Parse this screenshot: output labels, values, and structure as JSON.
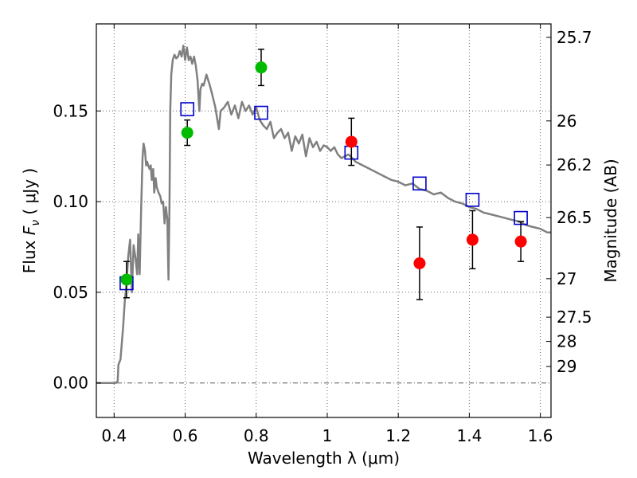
{
  "chart_data": {
    "type": "scatter",
    "xlabel": "Wavelength  λ (μm)",
    "ylabel": {
      "prefix": "Flux  ",
      "symbol": "F",
      "subscript": "ν",
      "suffix": "  ( μJy )"
    },
    "ylabel_right": "Magnitude (AB)",
    "xlim": [
      0.35,
      1.63
    ],
    "ylim": [
      -0.019,
      0.198
    ],
    "grid": true,
    "x_ticks": [
      {
        "value": 0.4,
        "label": "0.4"
      },
      {
        "value": 0.6,
        "label": "0.6"
      },
      {
        "value": 0.8,
        "label": "0.8"
      },
      {
        "value": 1.0,
        "label": "1"
      },
      {
        "value": 1.2,
        "label": "1.2"
      },
      {
        "value": 1.4,
        "label": "1.4"
      },
      {
        "value": 1.6,
        "label": "1.6"
      }
    ],
    "y_ticks": [
      {
        "value": 0.0,
        "label": "0.00"
      },
      {
        "value": 0.05,
        "label": "0.05"
      },
      {
        "value": 0.1,
        "label": "0.10"
      },
      {
        "value": 0.15,
        "label": "0.15"
      }
    ],
    "mag_ticks": [
      {
        "label": "25.7",
        "flux": 0.1906
      },
      {
        "label": "26",
        "flux": 0.1445
      },
      {
        "label": "26.2",
        "flux": 0.1202
      },
      {
        "label": "26.5",
        "flux": 0.0912
      },
      {
        "label": "27",
        "flux": 0.0575
      },
      {
        "label": "27.5",
        "flux": 0.0363
      },
      {
        "label": "28",
        "flux": 0.0229
      },
      {
        "label": "29",
        "flux": 0.0091
      }
    ],
    "colors": {
      "model": "#808080",
      "green": "#00bb00",
      "red": "#ff0000",
      "square": "#0000cc",
      "zero_line": "#555555",
      "grid": "#666666"
    },
    "series": [
      {
        "kind": "model_line",
        "points": [
          [
            0.35,
            0.0
          ],
          [
            0.405,
            0.0
          ],
          [
            0.41,
            0.001
          ],
          [
            0.412,
            0.01
          ],
          [
            0.418,
            0.013
          ],
          [
            0.425,
            0.03
          ],
          [
            0.43,
            0.045
          ],
          [
            0.435,
            0.055
          ],
          [
            0.44,
            0.07
          ],
          [
            0.445,
            0.079
          ],
          [
            0.45,
            0.05
          ],
          [
            0.455,
            0.076
          ],
          [
            0.46,
            0.069
          ],
          [
            0.465,
            0.06
          ],
          [
            0.468,
            0.082
          ],
          [
            0.472,
            0.06
          ],
          [
            0.476,
            0.095
          ],
          [
            0.48,
            0.124
          ],
          [
            0.483,
            0.132
          ],
          [
            0.487,
            0.128
          ],
          [
            0.49,
            0.12
          ],
          [
            0.493,
            0.122
          ],
          [
            0.496,
            0.12
          ],
          [
            0.5,
            0.118
          ],
          [
            0.503,
            0.12
          ],
          [
            0.506,
            0.112
          ],
          [
            0.51,
            0.118
          ],
          [
            0.513,
            0.105
          ],
          [
            0.517,
            0.113
          ],
          [
            0.52,
            0.108
          ],
          [
            0.525,
            0.105
          ],
          [
            0.53,
            0.103
          ],
          [
            0.534,
            0.099
          ],
          [
            0.538,
            0.1
          ],
          [
            0.542,
            0.088
          ],
          [
            0.546,
            0.097
          ],
          [
            0.55,
            0.09
          ],
          [
            0.553,
            0.057
          ],
          [
            0.556,
            0.1
          ],
          [
            0.558,
            0.15
          ],
          [
            0.561,
            0.17
          ],
          [
            0.565,
            0.178
          ],
          [
            0.57,
            0.181
          ],
          [
            0.575,
            0.179
          ],
          [
            0.58,
            0.18
          ],
          [
            0.585,
            0.183
          ],
          [
            0.59,
            0.18
          ],
          [
            0.595,
            0.186
          ],
          [
            0.6,
            0.178
          ],
          [
            0.605,
            0.185
          ],
          [
            0.61,
            0.178
          ],
          [
            0.615,
            0.18
          ],
          [
            0.62,
            0.176
          ],
          [
            0.625,
            0.18
          ],
          [
            0.63,
            0.175
          ],
          [
            0.635,
            0.167
          ],
          [
            0.64,
            0.15
          ],
          [
            0.643,
            0.162
          ],
          [
            0.648,
            0.165
          ],
          [
            0.652,
            0.164
          ],
          [
            0.66,
            0.17
          ],
          [
            0.668,
            0.165
          ],
          [
            0.675,
            0.16
          ],
          [
            0.685,
            0.152
          ],
          [
            0.695,
            0.14
          ],
          [
            0.7,
            0.15
          ],
          [
            0.71,
            0.152
          ],
          [
            0.72,
            0.155
          ],
          [
            0.73,
            0.148
          ],
          [
            0.74,
            0.153
          ],
          [
            0.75,
            0.146
          ],
          [
            0.76,
            0.155
          ],
          [
            0.77,
            0.15
          ],
          [
            0.78,
            0.153
          ],
          [
            0.79,
            0.148
          ],
          [
            0.8,
            0.152
          ],
          [
            0.81,
            0.145
          ],
          [
            0.82,
            0.142
          ],
          [
            0.83,
            0.14
          ],
          [
            0.84,
            0.144
          ],
          [
            0.85,
            0.135
          ],
          [
            0.86,
            0.138
          ],
          [
            0.87,
            0.14
          ],
          [
            0.88,
            0.135
          ],
          [
            0.89,
            0.138
          ],
          [
            0.9,
            0.128
          ],
          [
            0.91,
            0.136
          ],
          [
            0.92,
            0.132
          ],
          [
            0.93,
            0.137
          ],
          [
            0.94,
            0.125
          ],
          [
            0.95,
            0.135
          ],
          [
            0.96,
            0.13
          ],
          [
            0.97,
            0.133
          ],
          [
            0.98,
            0.128
          ],
          [
            0.99,
            0.131
          ],
          [
            1.0,
            0.13
          ],
          [
            1.01,
            0.128
          ],
          [
            1.02,
            0.13
          ],
          [
            1.03,
            0.126
          ],
          [
            1.04,
            0.124
          ],
          [
            1.06,
            0.126
          ],
          [
            1.08,
            0.122
          ],
          [
            1.1,
            0.12
          ],
          [
            1.12,
            0.118
          ],
          [
            1.14,
            0.116
          ],
          [
            1.16,
            0.114
          ],
          [
            1.18,
            0.112
          ],
          [
            1.2,
            0.111
          ],
          [
            1.22,
            0.109
          ],
          [
            1.24,
            0.11
          ],
          [
            1.26,
            0.107
          ],
          [
            1.28,
            0.106
          ],
          [
            1.3,
            0.104
          ],
          [
            1.32,
            0.105
          ],
          [
            1.34,
            0.102
          ],
          [
            1.36,
            0.1
          ],
          [
            1.38,
            0.099
          ],
          [
            1.4,
            0.097
          ],
          [
            1.42,
            0.096
          ],
          [
            1.44,
            0.094
          ],
          [
            1.46,
            0.093
          ],
          [
            1.48,
            0.092
          ],
          [
            1.5,
            0.091
          ],
          [
            1.52,
            0.09
          ],
          [
            1.54,
            0.089
          ],
          [
            1.56,
            0.087
          ],
          [
            1.58,
            0.086
          ],
          [
            1.6,
            0.085
          ],
          [
            1.62,
            0.083
          ],
          [
            1.63,
            0.083
          ]
        ]
      },
      {
        "kind": "green_points",
        "points": [
          {
            "x": 0.435,
            "y": 0.057,
            "err": 0.01
          },
          {
            "x": 0.606,
            "y": 0.138,
            "err": 0.007
          },
          {
            "x": 0.814,
            "y": 0.174,
            "err": 0.01
          }
        ]
      },
      {
        "kind": "red_points",
        "points": [
          {
            "x": 1.068,
            "y": 0.133,
            "err": 0.013
          },
          {
            "x": 1.26,
            "y": 0.066,
            "err": 0.02
          },
          {
            "x": 1.409,
            "y": 0.079,
            "err": 0.016
          },
          {
            "x": 1.545,
            "y": 0.078,
            "err": 0.011
          }
        ]
      },
      {
        "kind": "open_squares",
        "points": [
          {
            "x": 0.435,
            "y": 0.055
          },
          {
            "x": 0.606,
            "y": 0.151
          },
          {
            "x": 0.814,
            "y": 0.149
          },
          {
            "x": 1.068,
            "y": 0.127
          },
          {
            "x": 1.26,
            "y": 0.11
          },
          {
            "x": 1.409,
            "y": 0.101
          },
          {
            "x": 1.545,
            "y": 0.091
          }
        ]
      }
    ]
  }
}
